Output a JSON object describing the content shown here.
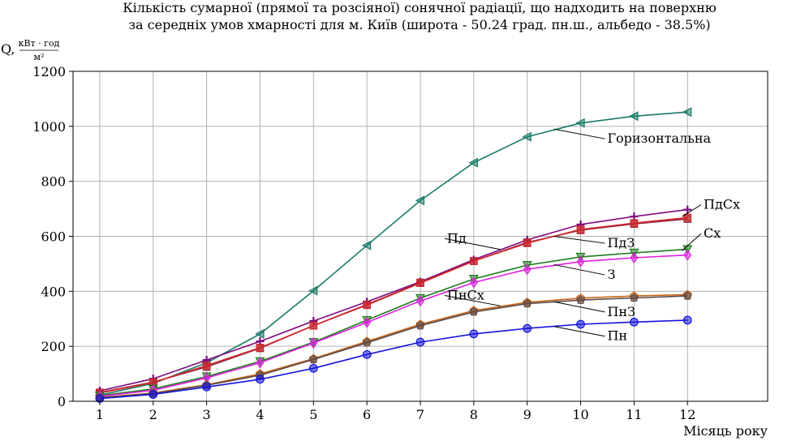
{
  "chart_data": {
    "type": "line",
    "title": "Кількість сумарної (прямої та розсіяної) сонячної радіації, що надходить на поверхню",
    "subtitle": "за середніх умов хмарності для м. Київ (широта - 50.24 град. пн.ш., альбедо - 38.5%)",
    "xlabel": "Місяць року",
    "ylabel": {
      "symbol": "Q,",
      "unit_numerator": "кВт · год",
      "unit_denominator": "м²"
    },
    "x": [
      1,
      2,
      3,
      4,
      5,
      6,
      7,
      8,
      9,
      10,
      11,
      12
    ],
    "xlim": [
      0.5,
      13.5
    ],
    "ylim": [
      0,
      1200
    ],
    "xticks": [
      1,
      2,
      3,
      4,
      5,
      6,
      7,
      8,
      9,
      10,
      11,
      12
    ],
    "yticks": [
      0,
      200,
      400,
      600,
      800,
      1000,
      1200
    ],
    "grid": true,
    "series": [
      {
        "name": "Горизонтальна",
        "color": "#1a7a68",
        "marker": "triangle-left",
        "values": [
          22,
          65,
          140,
          245,
          402,
          567,
          730,
          868,
          962,
          1012,
          1037,
          1052
        ]
      },
      {
        "name": "ПдСх",
        "color": "#7f0a7f",
        "marker": "plus",
        "values": [
          38,
          82,
          150,
          218,
          292,
          362,
          435,
          515,
          587,
          643,
          672,
          697
        ]
      },
      {
        "name": "Пд",
        "color": "#8b2a4a",
        "marker": "square",
        "values": [
          32,
          70,
          125,
          193,
          275,
          352,
          432,
          510,
          578,
          622,
          645,
          663
        ]
      },
      {
        "name": "ПдЗ",
        "color": "#d62728",
        "marker": "square",
        "values": [
          30,
          68,
          130,
          195,
          275,
          350,
          430,
          510,
          575,
          625,
          648,
          668
        ]
      },
      {
        "name": "Сх",
        "color": "#1f7a1f",
        "marker": "triangle-down",
        "values": [
          20,
          45,
          90,
          145,
          215,
          295,
          375,
          445,
          495,
          525,
          540,
          553
        ]
      },
      {
        "name": "З",
        "color": "#e020e0",
        "marker": "diamond",
        "values": [
          18,
          40,
          85,
          140,
          212,
          287,
          365,
          432,
          480,
          508,
          522,
          532
        ]
      },
      {
        "name": "ПнСх",
        "color": "#c86418",
        "marker": "pentagon",
        "values": [
          14,
          30,
          60,
          100,
          155,
          218,
          280,
          330,
          360,
          375,
          383,
          388
        ]
      },
      {
        "name": "ПнЗ",
        "color": "#5a4a4a",
        "marker": "pentagon",
        "values": [
          13,
          28,
          58,
          95,
          152,
          213,
          275,
          325,
          355,
          368,
          376,
          383
        ]
      },
      {
        "name": "Пн",
        "color": "#1414dd",
        "marker": "circle",
        "values": [
          10,
          25,
          52,
          80,
          120,
          170,
          215,
          245,
          265,
          280,
          288,
          295
        ]
      }
    ],
    "annotations": [
      {
        "text": "Горизонтальна",
        "series": "Горизонтальна",
        "point": [
          9.5,
          990
        ],
        "text_at": [
          10.5,
          940
        ],
        "anchor": "start"
      },
      {
        "text": "ПдСх",
        "series": "ПдСх",
        "point": [
          11.9,
          672
        ],
        "text_at": [
          12.3,
          700
        ],
        "anchor": "start"
      },
      {
        "text": "Пд",
        "series": "Пд",
        "point": [
          8.5,
          552
        ],
        "text_at": [
          7.5,
          577
        ],
        "anchor": "start"
      },
      {
        "text": "ПдЗ",
        "series": "ПдЗ",
        "point": [
          9.5,
          600
        ],
        "text_at": [
          10.5,
          560
        ],
        "anchor": "start"
      },
      {
        "text": "Сх",
        "series": "Сх",
        "point": [
          11.9,
          548
        ],
        "text_at": [
          12.3,
          595
        ],
        "anchor": "start"
      },
      {
        "text": "З",
        "series": "З",
        "point": [
          9.5,
          497
        ],
        "text_at": [
          10.5,
          445
        ],
        "anchor": "start"
      },
      {
        "text": "ПнСх",
        "series": "ПнСх",
        "point": [
          8.5,
          347
        ],
        "text_at": [
          7.5,
          370
        ],
        "anchor": "start"
      },
      {
        "text": "ПнЗ",
        "series": "ПнЗ",
        "point": [
          9.5,
          362
        ],
        "text_at": [
          10.5,
          310
        ],
        "anchor": "start"
      },
      {
        "text": "Пн",
        "series": "Пн",
        "point": [
          9.5,
          272
        ],
        "text_at": [
          10.5,
          222
        ],
        "anchor": "start"
      }
    ]
  }
}
